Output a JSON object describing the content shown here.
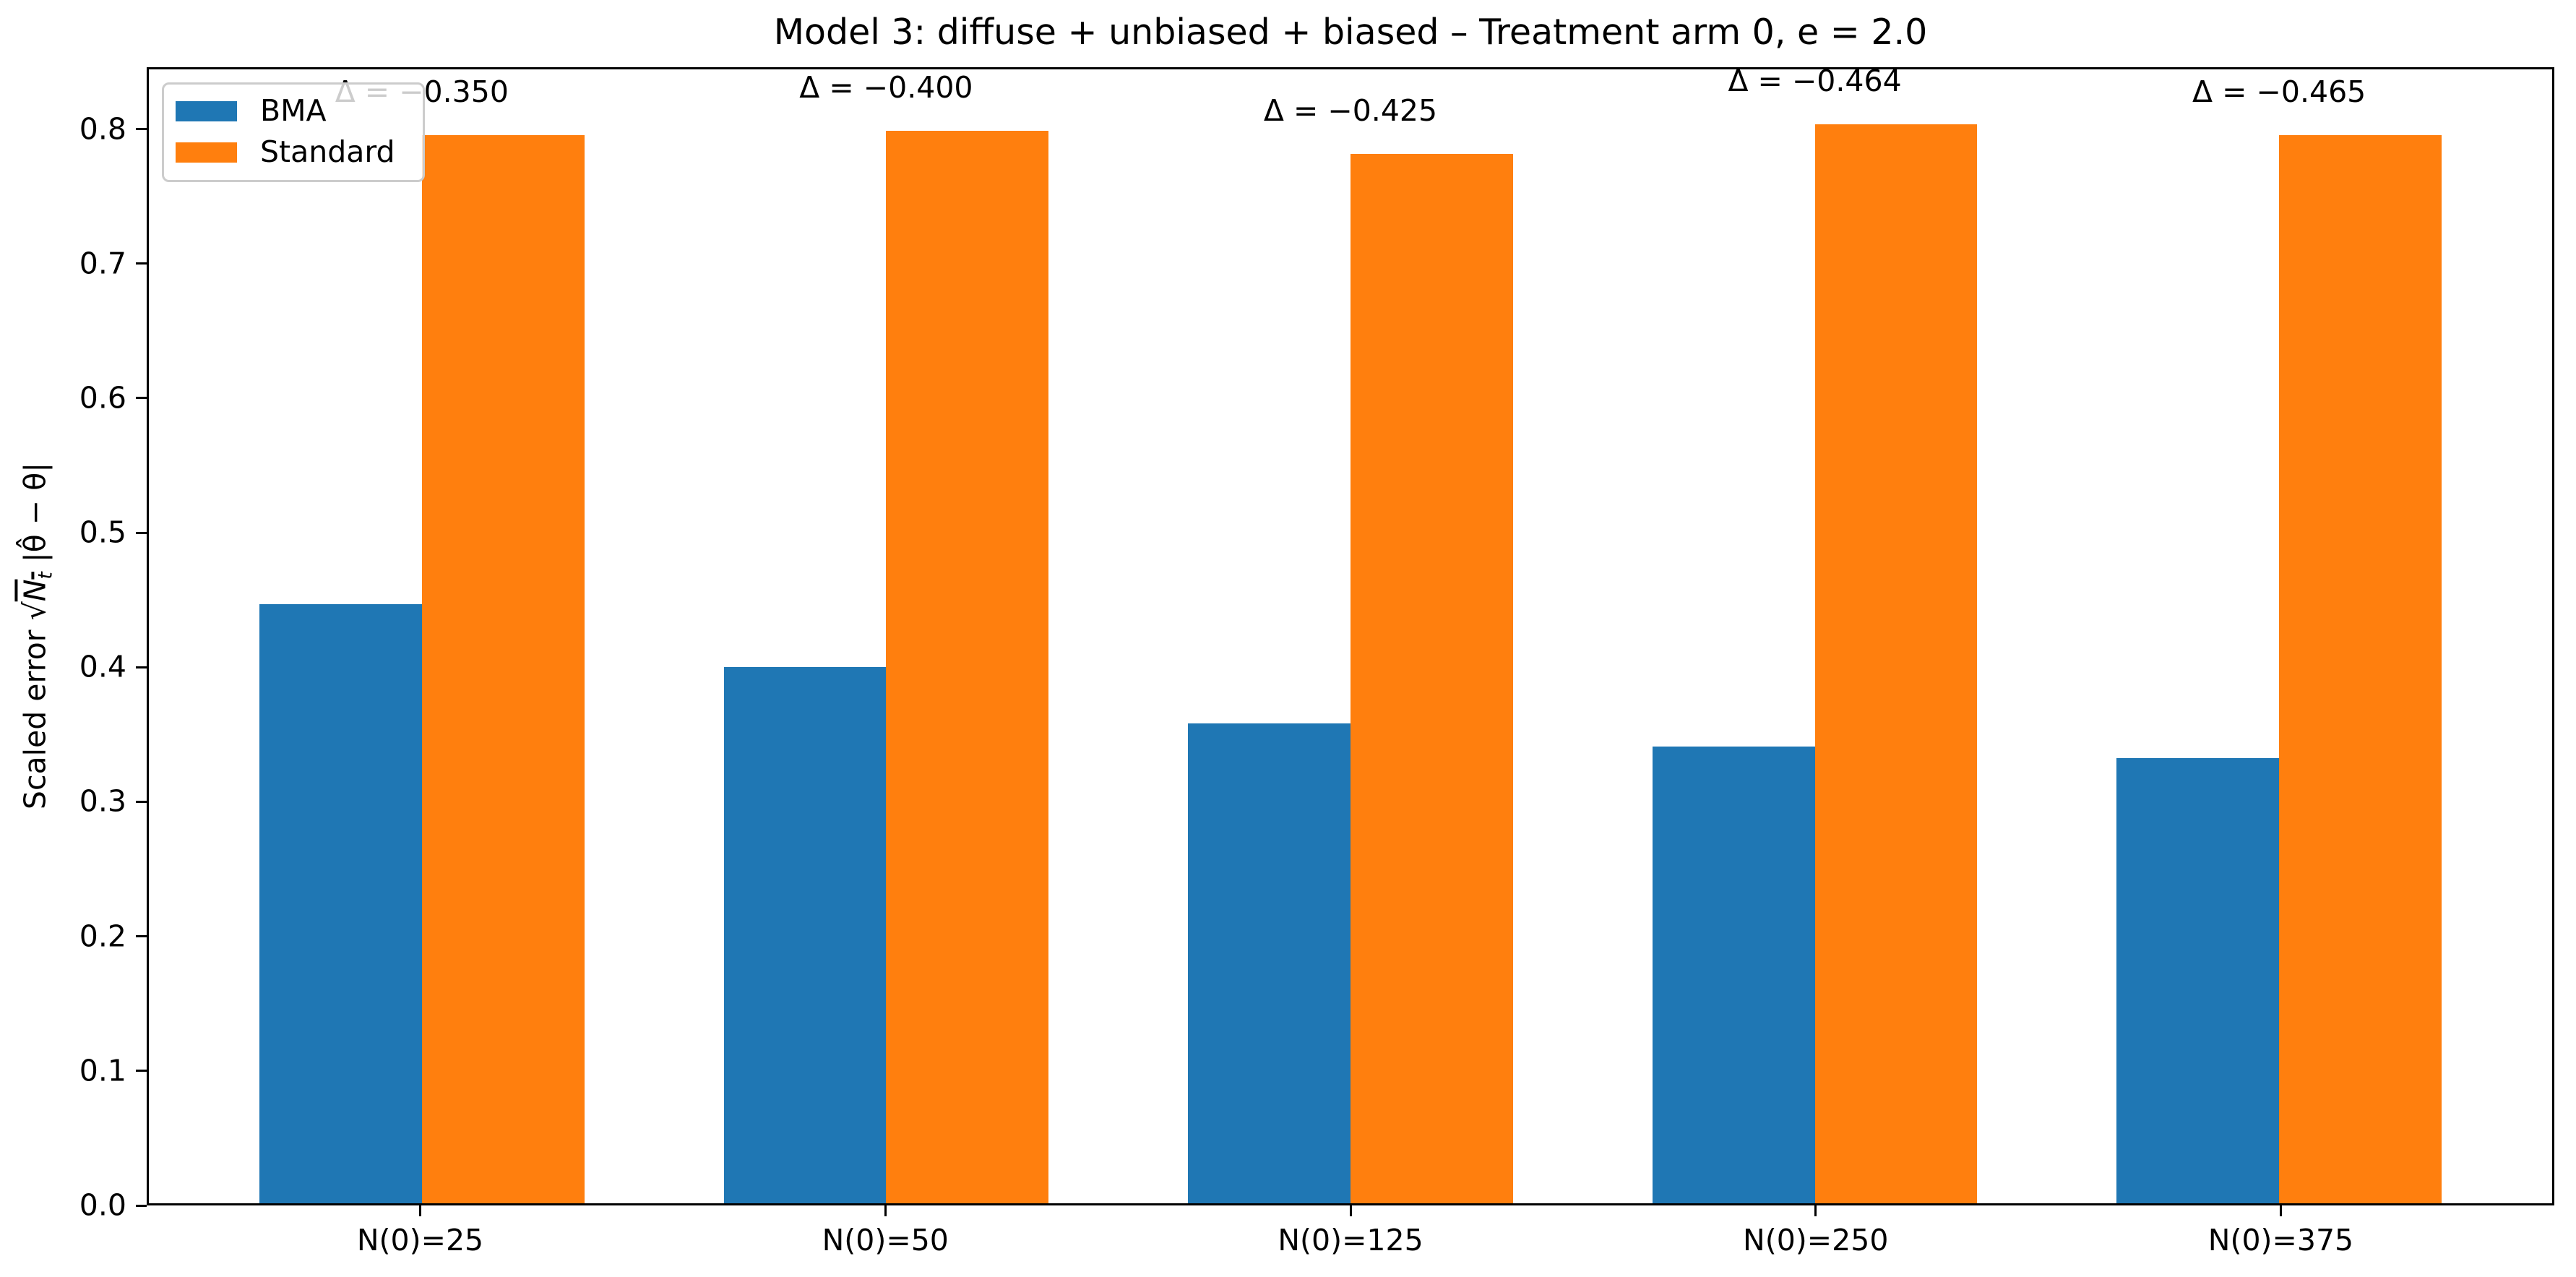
{
  "chart_data": {
    "type": "bar",
    "title": "Model 3: diffuse + unbiased + biased – Treatment arm 0, e = 2.0",
    "categories": [
      "N(0)=25",
      "N(0)=50",
      "N(0)=125",
      "N(0)=250",
      "N(0)=375"
    ],
    "series": [
      {
        "name": "BMA",
        "color": "#1f77b4",
        "values": [
          0.447,
          0.4,
          0.358,
          0.341,
          0.332
        ]
      },
      {
        "name": "Standard",
        "color": "#ff7f0e",
        "values": [
          0.797,
          0.8,
          0.783,
          0.805,
          0.797
        ]
      }
    ],
    "annotations": [
      "Δ = −0.350",
      "Δ = −0.400",
      "Δ = −0.425",
      "Δ = −0.464",
      "Δ = −0.465"
    ],
    "ylabel": "Scaled error √Nₜ |θ̂ − θ|",
    "ylabel_parts": {
      "prefix": "Scaled error ",
      "sqrt": "√",
      "radicand": "N",
      "radicand_sub": "t",
      "rest": " |θ̂ − θ|"
    },
    "xlabel": "",
    "yticks": [
      "0.0",
      "0.1",
      "0.2",
      "0.3",
      "0.4",
      "0.5",
      "0.6",
      "0.7",
      "0.8"
    ],
    "ylim": [
      0,
      0.846
    ],
    "bar_width": 0.35,
    "grid": false,
    "legend_position": "upper left"
  }
}
